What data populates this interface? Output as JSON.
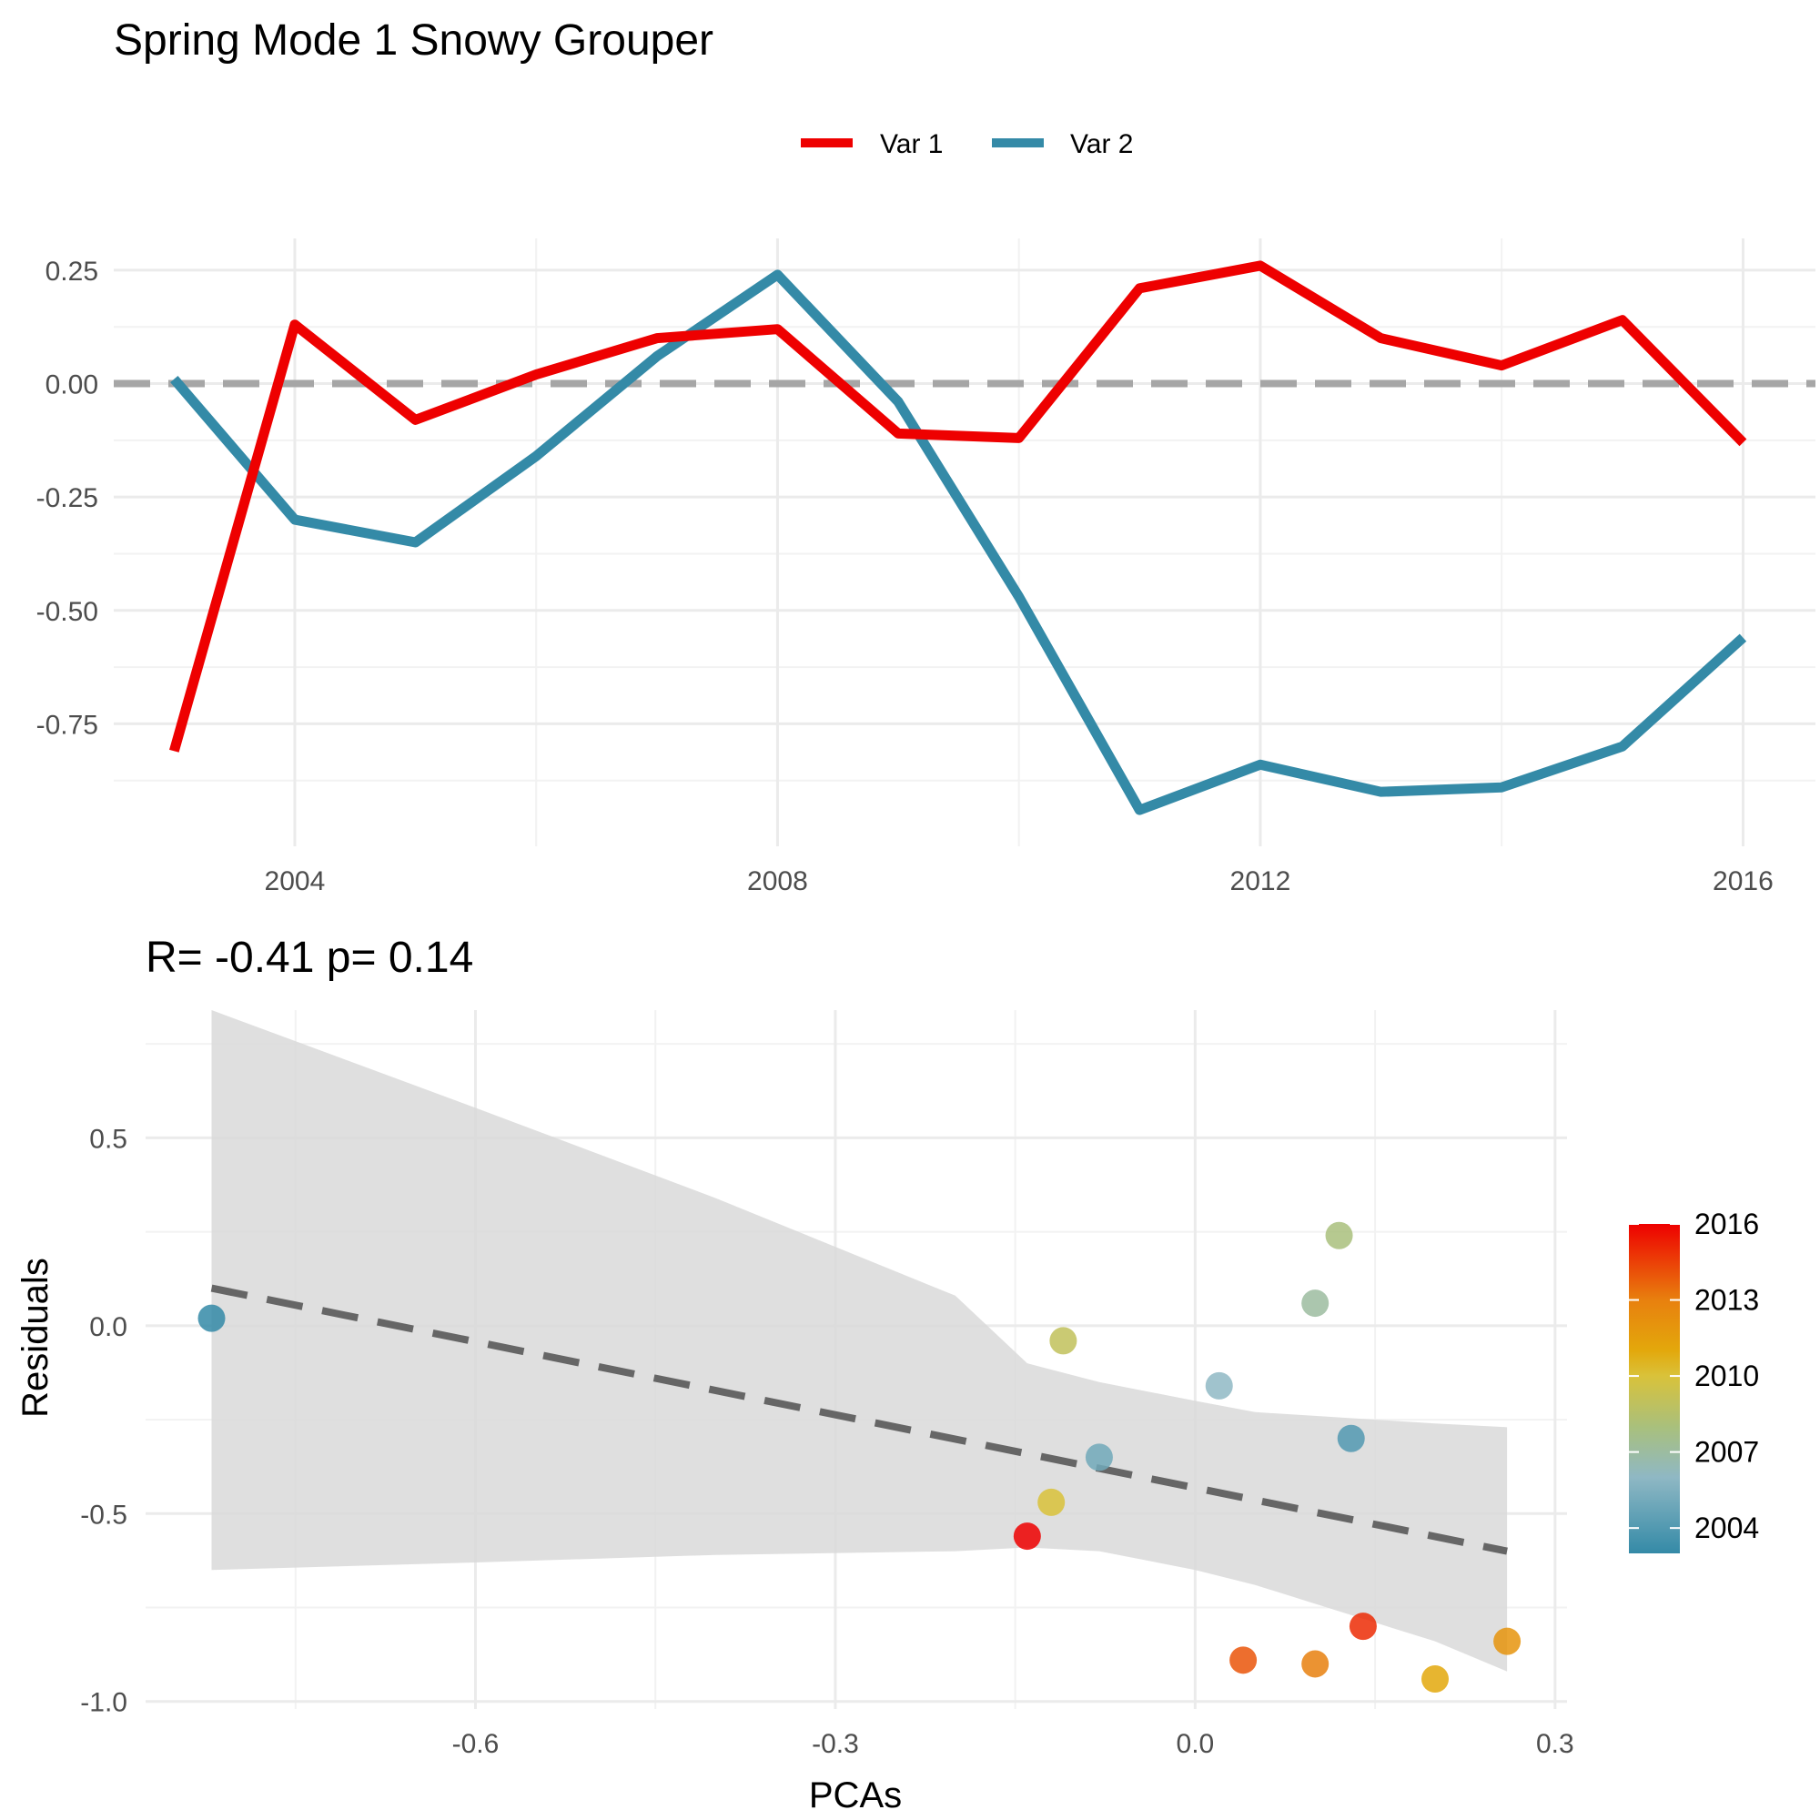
{
  "title": "Spring Mode 1 Snowy Grouper",
  "chart_data": [
    {
      "type": "line",
      "legend": {
        "position": "top",
        "entries": [
          "Var 1",
          "Var 2"
        ]
      },
      "x": [
        2003,
        2004,
        2005,
        2006,
        2007,
        2008,
        2009,
        2010,
        2011,
        2012,
        2013,
        2014,
        2015,
        2016
      ],
      "series": [
        {
          "name": "Var 1",
          "color": "#ee0000",
          "values": [
            -0.81,
            0.13,
            -0.08,
            0.02,
            0.1,
            0.12,
            -0.11,
            -0.12,
            0.21,
            0.26,
            0.1,
            0.04,
            0.14,
            -0.13
          ]
        },
        {
          "name": "Var 2",
          "color": "#348aa7",
          "values": [
            0.01,
            -0.3,
            -0.35,
            -0.16,
            0.06,
            0.24,
            -0.04,
            -0.47,
            -0.94,
            -0.84,
            -0.9,
            -0.89,
            -0.8,
            -0.56
          ]
        }
      ],
      "hline": 0,
      "xlim": [
        2002.5,
        2016.6
      ],
      "ylim": [
        -1.02,
        0.32
      ],
      "xticks": [
        "2004",
        "2008",
        "2012",
        "2016"
      ],
      "yticks": [
        "0.25",
        "0.00",
        "-0.25",
        "-0.50",
        "-0.75"
      ],
      "grid": true
    },
    {
      "type": "scatter",
      "subtitle": "R= -0.41  p= 0.14",
      "xlabel": "PCAs",
      "ylabel": "Residuals",
      "xlim": [
        -0.875,
        0.31
      ],
      "ylim": [
        -1.02,
        0.84
      ],
      "xticks": [
        "-0.6",
        "-0.3",
        "0.0",
        "0.3"
      ],
      "yticks": [
        "0.5",
        "0.0",
        "-0.5",
        "-1.0"
      ],
      "grid": true,
      "points": [
        {
          "x": -0.82,
          "y": 0.02,
          "year": 2003
        },
        {
          "x": 0.13,
          "y": -0.3,
          "year": 2004
        },
        {
          "x": -0.08,
          "y": -0.35,
          "year": 2005
        },
        {
          "x": 0.02,
          "y": -0.16,
          "year": 2006
        },
        {
          "x": 0.1,
          "y": 0.06,
          "year": 2007
        },
        {
          "x": 0.12,
          "y": 0.24,
          "year": 2008
        },
        {
          "x": -0.11,
          "y": -0.04,
          "year": 2009
        },
        {
          "x": -0.12,
          "y": -0.47,
          "year": 2010
        },
        {
          "x": 0.2,
          "y": -0.94,
          "year": 2011
        },
        {
          "x": 0.26,
          "y": -0.84,
          "year": 2012
        },
        {
          "x": 0.1,
          "y": -0.9,
          "year": 2013
        },
        {
          "x": 0.04,
          "y": -0.89,
          "year": 2014
        },
        {
          "x": 0.14,
          "y": -0.8,
          "year": 2015
        },
        {
          "x": -0.14,
          "y": -0.56,
          "year": 2016
        }
      ],
      "fit": {
        "x": [
          -0.82,
          0.26
        ],
        "y": [
          0.1,
          -0.6
        ],
        "ci": {
          "x": [
            -0.82,
            -0.6,
            -0.4,
            -0.2,
            -0.14,
            -0.08,
            0.0,
            0.05,
            0.1,
            0.15,
            0.2,
            0.26
          ],
          "upper": [
            0.84,
            0.58,
            0.34,
            0.08,
            -0.1,
            -0.15,
            -0.2,
            -0.23,
            -0.24,
            -0.25,
            -0.26,
            -0.27
          ],
          "lower": [
            -0.65,
            -0.63,
            -0.61,
            -0.6,
            -0.59,
            -0.6,
            -0.65,
            -0.69,
            -0.74,
            -0.79,
            -0.84,
            -0.92
          ]
        }
      },
      "colorbar": {
        "labels": [
          "2016",
          "2013",
          "2010",
          "2007",
          "2004"
        ],
        "values": [
          2016,
          2013,
          2010,
          2007,
          2004
        ],
        "min": 2003,
        "max": 2016,
        "stops": [
          {
            "year": 2003,
            "color": "#348aa7"
          },
          {
            "year": 2006,
            "color": "#8fb8c4"
          },
          {
            "year": 2008,
            "color": "#a9c07c"
          },
          {
            "year": 2010,
            "color": "#d9c23a"
          },
          {
            "year": 2011,
            "color": "#e3a80c"
          },
          {
            "year": 2013,
            "color": "#e8800e"
          },
          {
            "year": 2016,
            "color": "#ee0000"
          }
        ]
      }
    }
  ]
}
